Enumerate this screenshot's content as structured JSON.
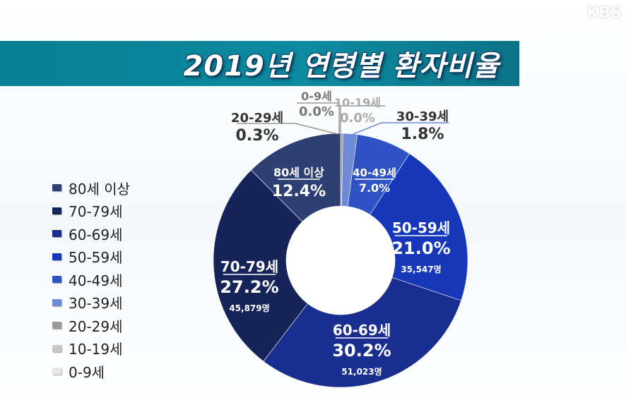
{
  "header": {
    "title": "2019년 연령별 환자비율",
    "logo": "KBS"
  },
  "chart_data": {
    "type": "pie",
    "title": "2019년 연령별 환자비율",
    "legend_position": "left",
    "slices": [
      {
        "label": "80세 이상",
        "value": 12.4,
        "value_text": "12.4%",
        "count_text": "",
        "color": "#2e3f73"
      },
      {
        "label": "70-79세",
        "value": 27.2,
        "value_text": "27.2%",
        "count_text": "45,879명",
        "color": "#17245a"
      },
      {
        "label": "60-69세",
        "value": 30.2,
        "value_text": "30.2%",
        "count_text": "51,023명",
        "color": "#1a2e8f"
      },
      {
        "label": "50-59세",
        "value": 21.0,
        "value_text": "21.0%",
        "count_text": "35,547명",
        "color": "#1637b8"
      },
      {
        "label": "40-49세",
        "value": 7.0,
        "value_text": "7.0%",
        "count_text": "",
        "color": "#2f53c4"
      },
      {
        "label": "30-39세",
        "value": 1.8,
        "value_text": "1.8%",
        "count_text": "",
        "color": "#6e8ad6"
      },
      {
        "label": "20-29세",
        "value": 0.3,
        "value_text": "0.3%",
        "count_text": "",
        "color": "#9a9a9a"
      },
      {
        "label": "10-19세",
        "value": 0.0,
        "value_text": "0.0%",
        "count_text": "",
        "color": "#c8c8c8"
      },
      {
        "label": "0-9세",
        "value": 0.0,
        "value_text": "0.0%",
        "count_text": "",
        "color": "#e6e6e6"
      }
    ]
  }
}
